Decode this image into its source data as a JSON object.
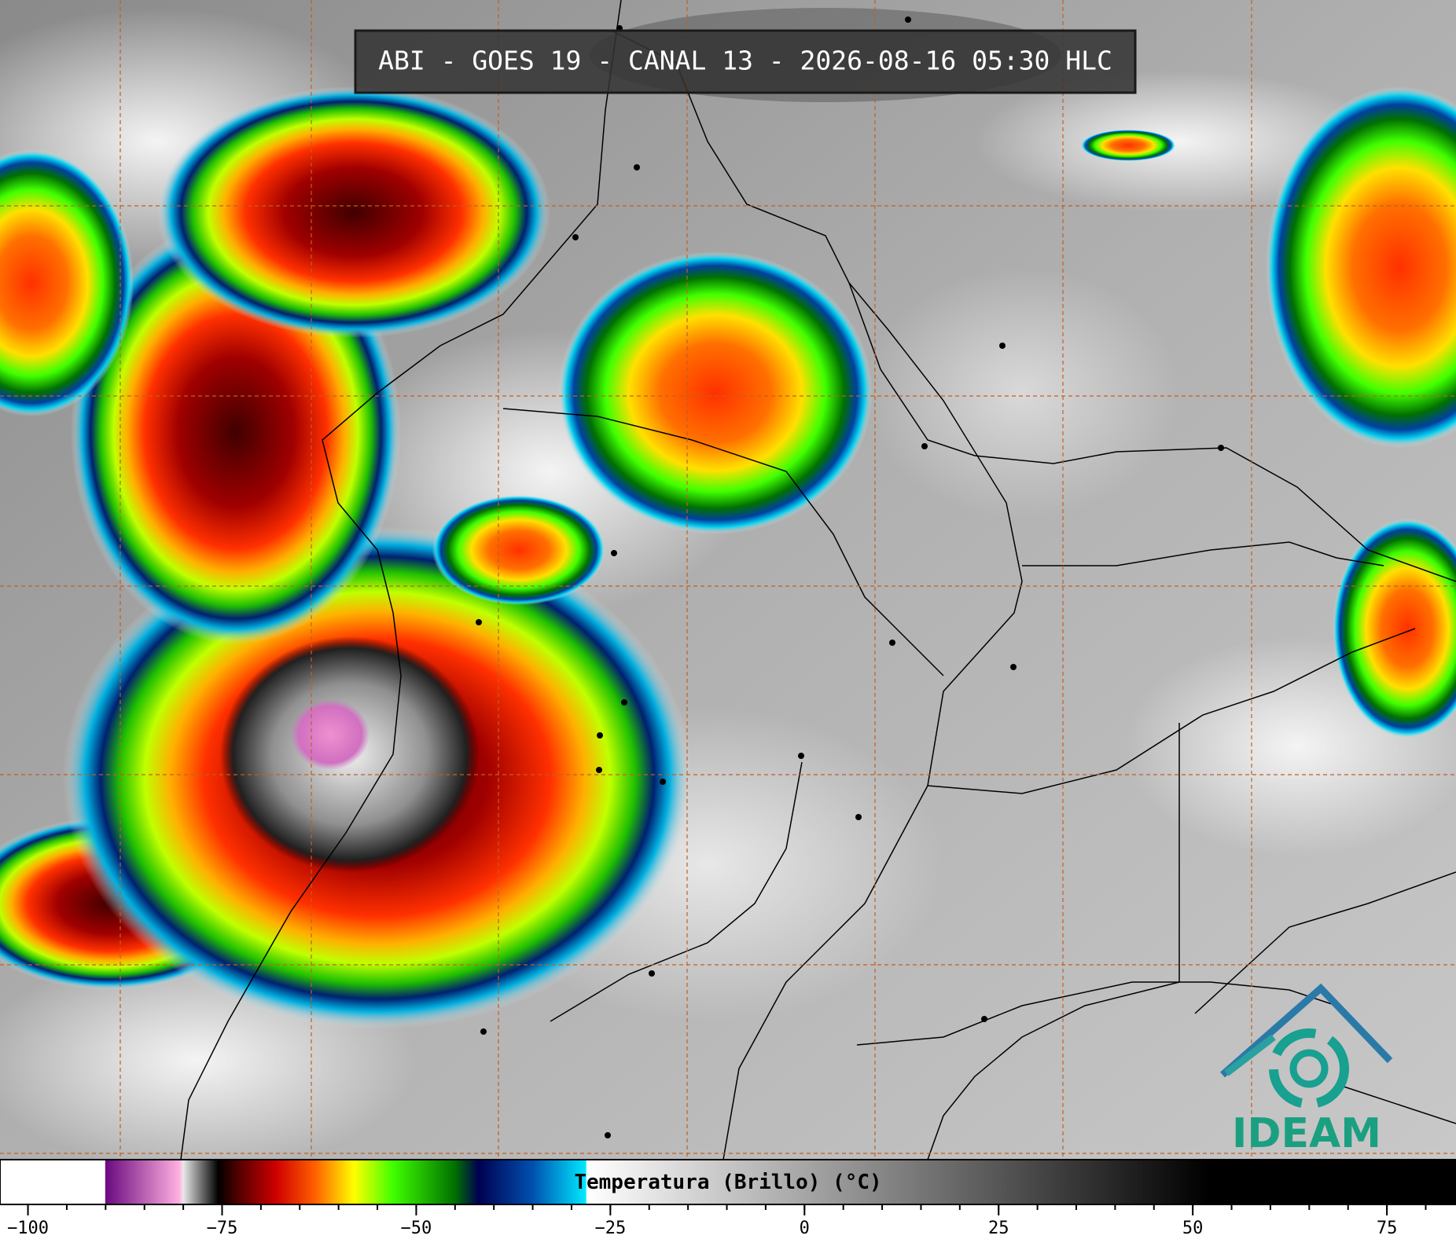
{
  "title": "ABI - GOES 19 - CANAL 13 - 2026-08-16 05:30 HLC",
  "colorbar": {
    "label": "Temperatura (Brillo) (°C)",
    "lim": [
      -103.6,
      83.9
    ],
    "ticks": [
      {
        "value": -100,
        "label": "−100"
      },
      {
        "value": -75,
        "label": "−75"
      },
      {
        "value": -50,
        "label": "−50"
      },
      {
        "value": -25,
        "label": "−25"
      },
      0,
      25,
      50,
      75
    ],
    "minor_tick_step": 5,
    "stops": [
      {
        "value": -103.6,
        "color": "#ffffff"
      },
      {
        "value": -90.1,
        "color": "#ffffff"
      },
      {
        "value": -90,
        "color": "#6a0a80"
      },
      {
        "value": -80.5,
        "color": "#ffb0e0"
      },
      {
        "value": -80,
        "color": "#e8e8e8"
      },
      {
        "value": -75.5,
        "color": "#000000"
      },
      {
        "value": -73,
        "color": "#500000"
      },
      {
        "value": -68,
        "color": "#d00000"
      },
      {
        "value": -63,
        "color": "#ff6000"
      },
      {
        "value": -58,
        "color": "#ffff00"
      },
      {
        "value": -53,
        "color": "#40ff00"
      },
      {
        "value": -45,
        "color": "#007000"
      },
      {
        "value": -42,
        "color": "#000050"
      },
      {
        "value": -35,
        "color": "#0050b0"
      },
      {
        "value": -28.2,
        "color": "#00e8ff"
      },
      {
        "value": -28,
        "color": "#ffffff"
      },
      {
        "value": 52,
        "color": "#000000"
      },
      {
        "value": 83.9,
        "color": "#000000"
      }
    ]
  },
  "logo": "IDEAM"
}
